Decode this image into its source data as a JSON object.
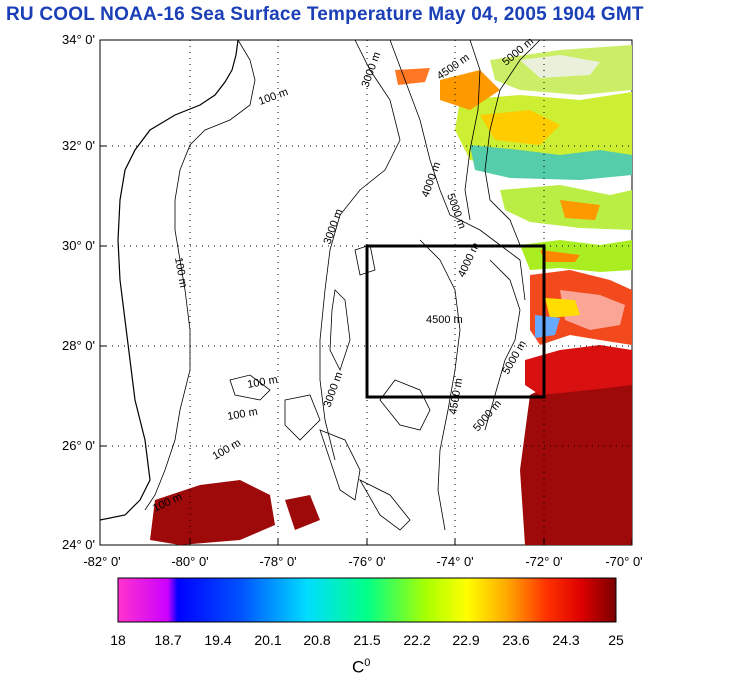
{
  "title": "RU COOL  NOAA-16 Sea Surface Temperature May 04, 2005 1904 GMT",
  "y_axis": {
    "ticks": [
      "34° 0'",
      "32° 0'",
      "30° 0'",
      "28° 0'",
      "26° 0'",
      "24° 0'"
    ]
  },
  "x_axis": {
    "ticks": [
      "-82° 0'",
      "-80° 0'",
      "-78° 0'",
      "-76° 0'",
      "-74° 0'",
      "-72° 0'",
      "-70° 0'"
    ]
  },
  "contour_labels": {
    "m100": "100 m",
    "m3000": "3000 m",
    "m4000": "4000 m",
    "m4500": "4500 m",
    "m5000": "5000 m"
  },
  "colorbar": {
    "ticks": [
      "18",
      "18.7",
      "19.4",
      "20.1",
      "20.8",
      "21.5",
      "22.2",
      "22.9",
      "23.6",
      "24.3",
      "25"
    ],
    "unit": "C",
    "unit_sup": "0",
    "colors": [
      "#ff33cc",
      "#cc00ff",
      "#0000ff",
      "#0066ff",
      "#00ccff",
      "#00ffcc",
      "#66ff33",
      "#ccff00",
      "#ffff00",
      "#ffaa00",
      "#ff4400",
      "#ee0000",
      "#aa0000",
      "#800000"
    ]
  },
  "study_box": {
    "lon_min": -76,
    "lon_max": -72,
    "lat_min": 27,
    "lat_max": 30
  },
  "map_extent": {
    "lon_min": -82,
    "lon_max": -70,
    "lat_min": 24,
    "lat_max": 34
  },
  "grid": true
}
